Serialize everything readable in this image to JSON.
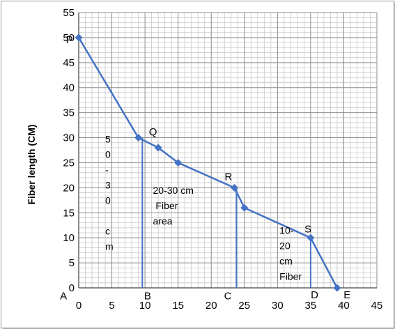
{
  "chart_data": {
    "type": "line",
    "title": "",
    "xlabel": "",
    "ylabel": "Fiber length (CM)",
    "xlim": [
      0,
      45
    ],
    "ylim": [
      0,
      55
    ],
    "x_ticks": [
      "0",
      "5",
      "10",
      "15",
      "20",
      "25",
      "30",
      "35",
      "40",
      "45"
    ],
    "y_ticks": [
      "0",
      "5",
      "10",
      "15",
      "20",
      "25",
      "30",
      "35",
      "40",
      "45",
      "50",
      "55"
    ],
    "grid": true,
    "minor_grid": true,
    "line_color": "#4472c4",
    "series": [
      {
        "points": [
          {
            "x": 0,
            "y": 50
          },
          {
            "x": 9,
            "y": 30
          },
          {
            "x": 12,
            "y": 28
          },
          {
            "x": 15,
            "y": 25
          },
          {
            "x": 23.5,
            "y": 20
          },
          {
            "x": 25,
            "y": 16
          },
          {
            "x": 35,
            "y": 10
          },
          {
            "x": 39,
            "y": 0
          }
        ]
      }
    ],
    "drop_lines": [
      {
        "x": 9.6,
        "from_y": 30
      },
      {
        "x": 23.8,
        "from_y": 20
      },
      {
        "x": 35,
        "from_y": 10
      }
    ],
    "point_labels": [
      {
        "text": "P",
        "x": -1.4,
        "y": 49.6
      },
      {
        "text": "Q",
        "x": 11.2,
        "y": 31.2
      },
      {
        "text": "R",
        "x": 22.6,
        "y": 22.2
      },
      {
        "text": "S",
        "x": 34.6,
        "y": 11.8
      },
      {
        "text": "A",
        "x": -2.3,
        "y": -1.6
      },
      {
        "text": "B",
        "x": 10.4,
        "y": -1.6
      },
      {
        "text": "C",
        "x": 22.5,
        "y": -1.6
      },
      {
        "text": "D",
        "x": 35.6,
        "y": -1.4
      },
      {
        "text": "E",
        "x": 40.5,
        "y": -1.4
      }
    ],
    "annotations": [
      {
        "lines": [
          "5",
          "0",
          "-",
          "3",
          "0",
          "",
          "c",
          "m"
        ],
        "x": 4.0,
        "y": 29
      },
      {
        "lines": [
          "20-30 cm",
          " Fiber",
          "area"
        ],
        "x": 11.2,
        "y": 18.8
      },
      {
        "lines": [
          "10-",
          "20",
          "cm",
          "Fiber"
        ],
        "x": 30.3,
        "y": 10.8
      }
    ]
  }
}
